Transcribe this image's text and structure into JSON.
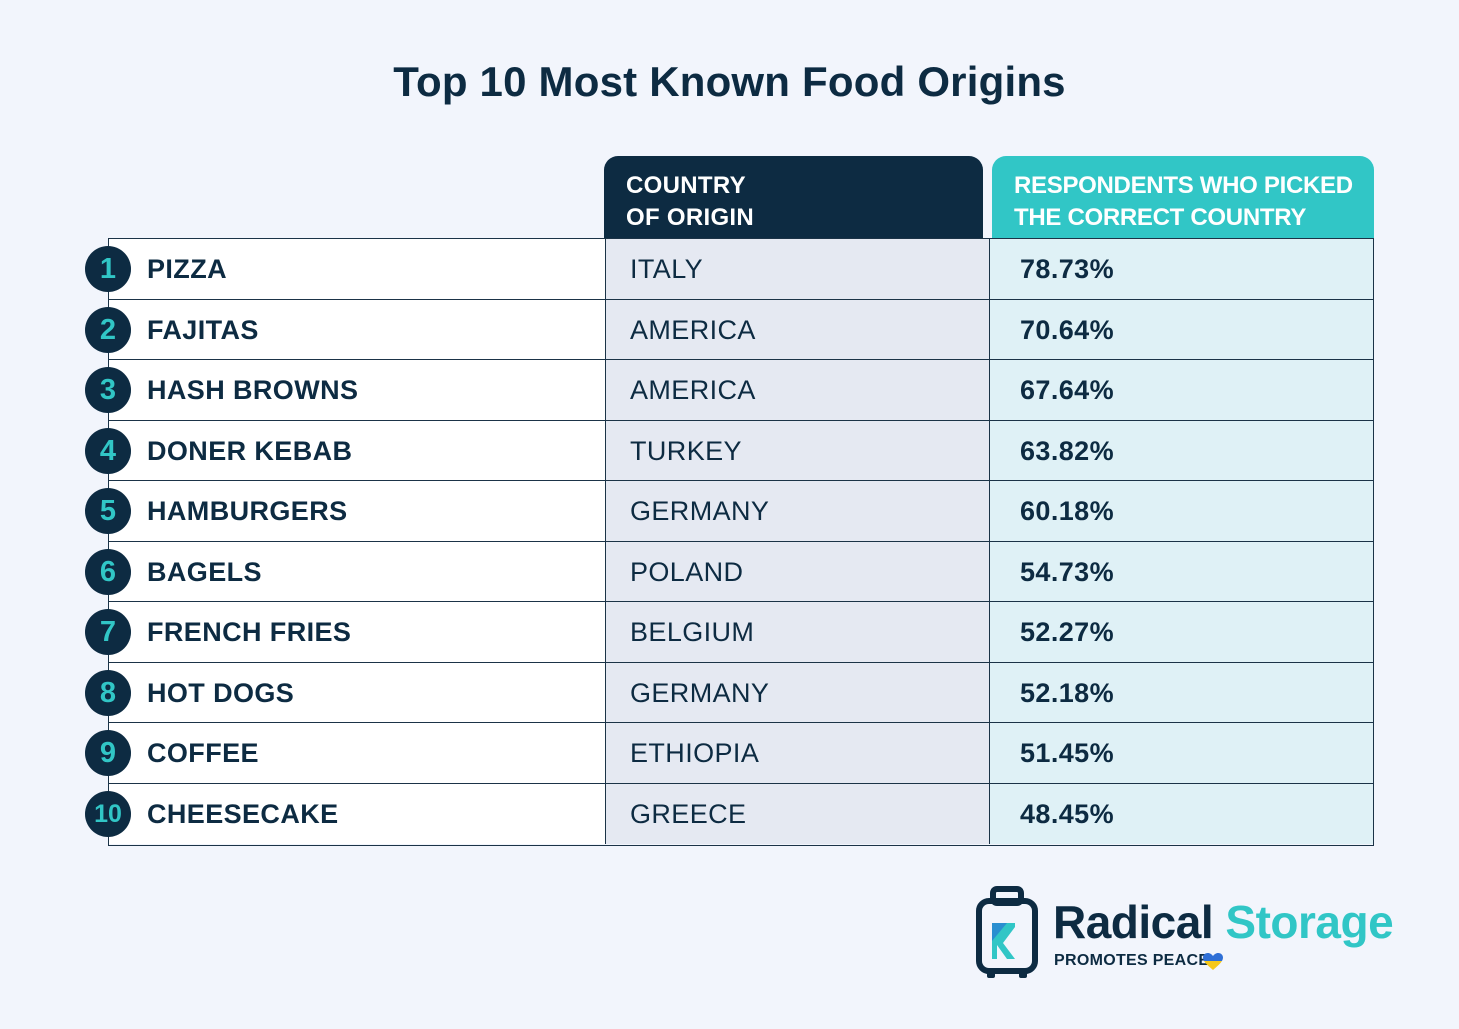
{
  "chart_data": {
    "type": "table",
    "title": "Top 10 Most Known Food Origins",
    "columns": [
      "",
      "COUNTRY OF ORIGIN",
      "RESPONDENTS WHO PICKED THE CORRECT COUNTRY"
    ],
    "header_country_lines": [
      "COUNTRY",
      "OF ORIGIN"
    ],
    "header_resp_lines": [
      "RESPONDENTS WHO PICKED",
      "THE CORRECT COUNTRY"
    ],
    "rows": [
      {
        "rank": "1",
        "food": "PIZZA",
        "country": "ITALY",
        "percent": "78.73%"
      },
      {
        "rank": "2",
        "food": "FAJITAS",
        "country": "AMERICA",
        "percent": "70.64%"
      },
      {
        "rank": "3",
        "food": "HASH BROWNS",
        "country": "AMERICA",
        "percent": "67.64%"
      },
      {
        "rank": "4",
        "food": "DONER KEBAB",
        "country": "TURKEY",
        "percent": "63.82%"
      },
      {
        "rank": "5",
        "food": "HAMBURGERS",
        "country": "GERMANY",
        "percent": "60.18%"
      },
      {
        "rank": "6",
        "food": "BAGELS",
        "country": "POLAND",
        "percent": "54.73%"
      },
      {
        "rank": "7",
        "food": "FRENCH FRIES",
        "country": "BELGIUM",
        "percent": "52.27%"
      },
      {
        "rank": "8",
        "food": "HOT DOGS",
        "country": "GERMANY",
        "percent": "52.18%"
      },
      {
        "rank": "9",
        "food": "COFFEE",
        "country": "ETHIOPIA",
        "percent": "51.45%"
      },
      {
        "rank": "10",
        "food": "CHEESECAKE",
        "country": "GREECE",
        "percent": "48.45%"
      }
    ]
  },
  "logo": {
    "name_part1": "Radical",
    "name_part2": "Storage",
    "tagline": "PROMOTES PEACE"
  },
  "colors": {
    "navy": "#0d2b42",
    "teal": "#31c6c6",
    "background": "#f2f5fc"
  }
}
